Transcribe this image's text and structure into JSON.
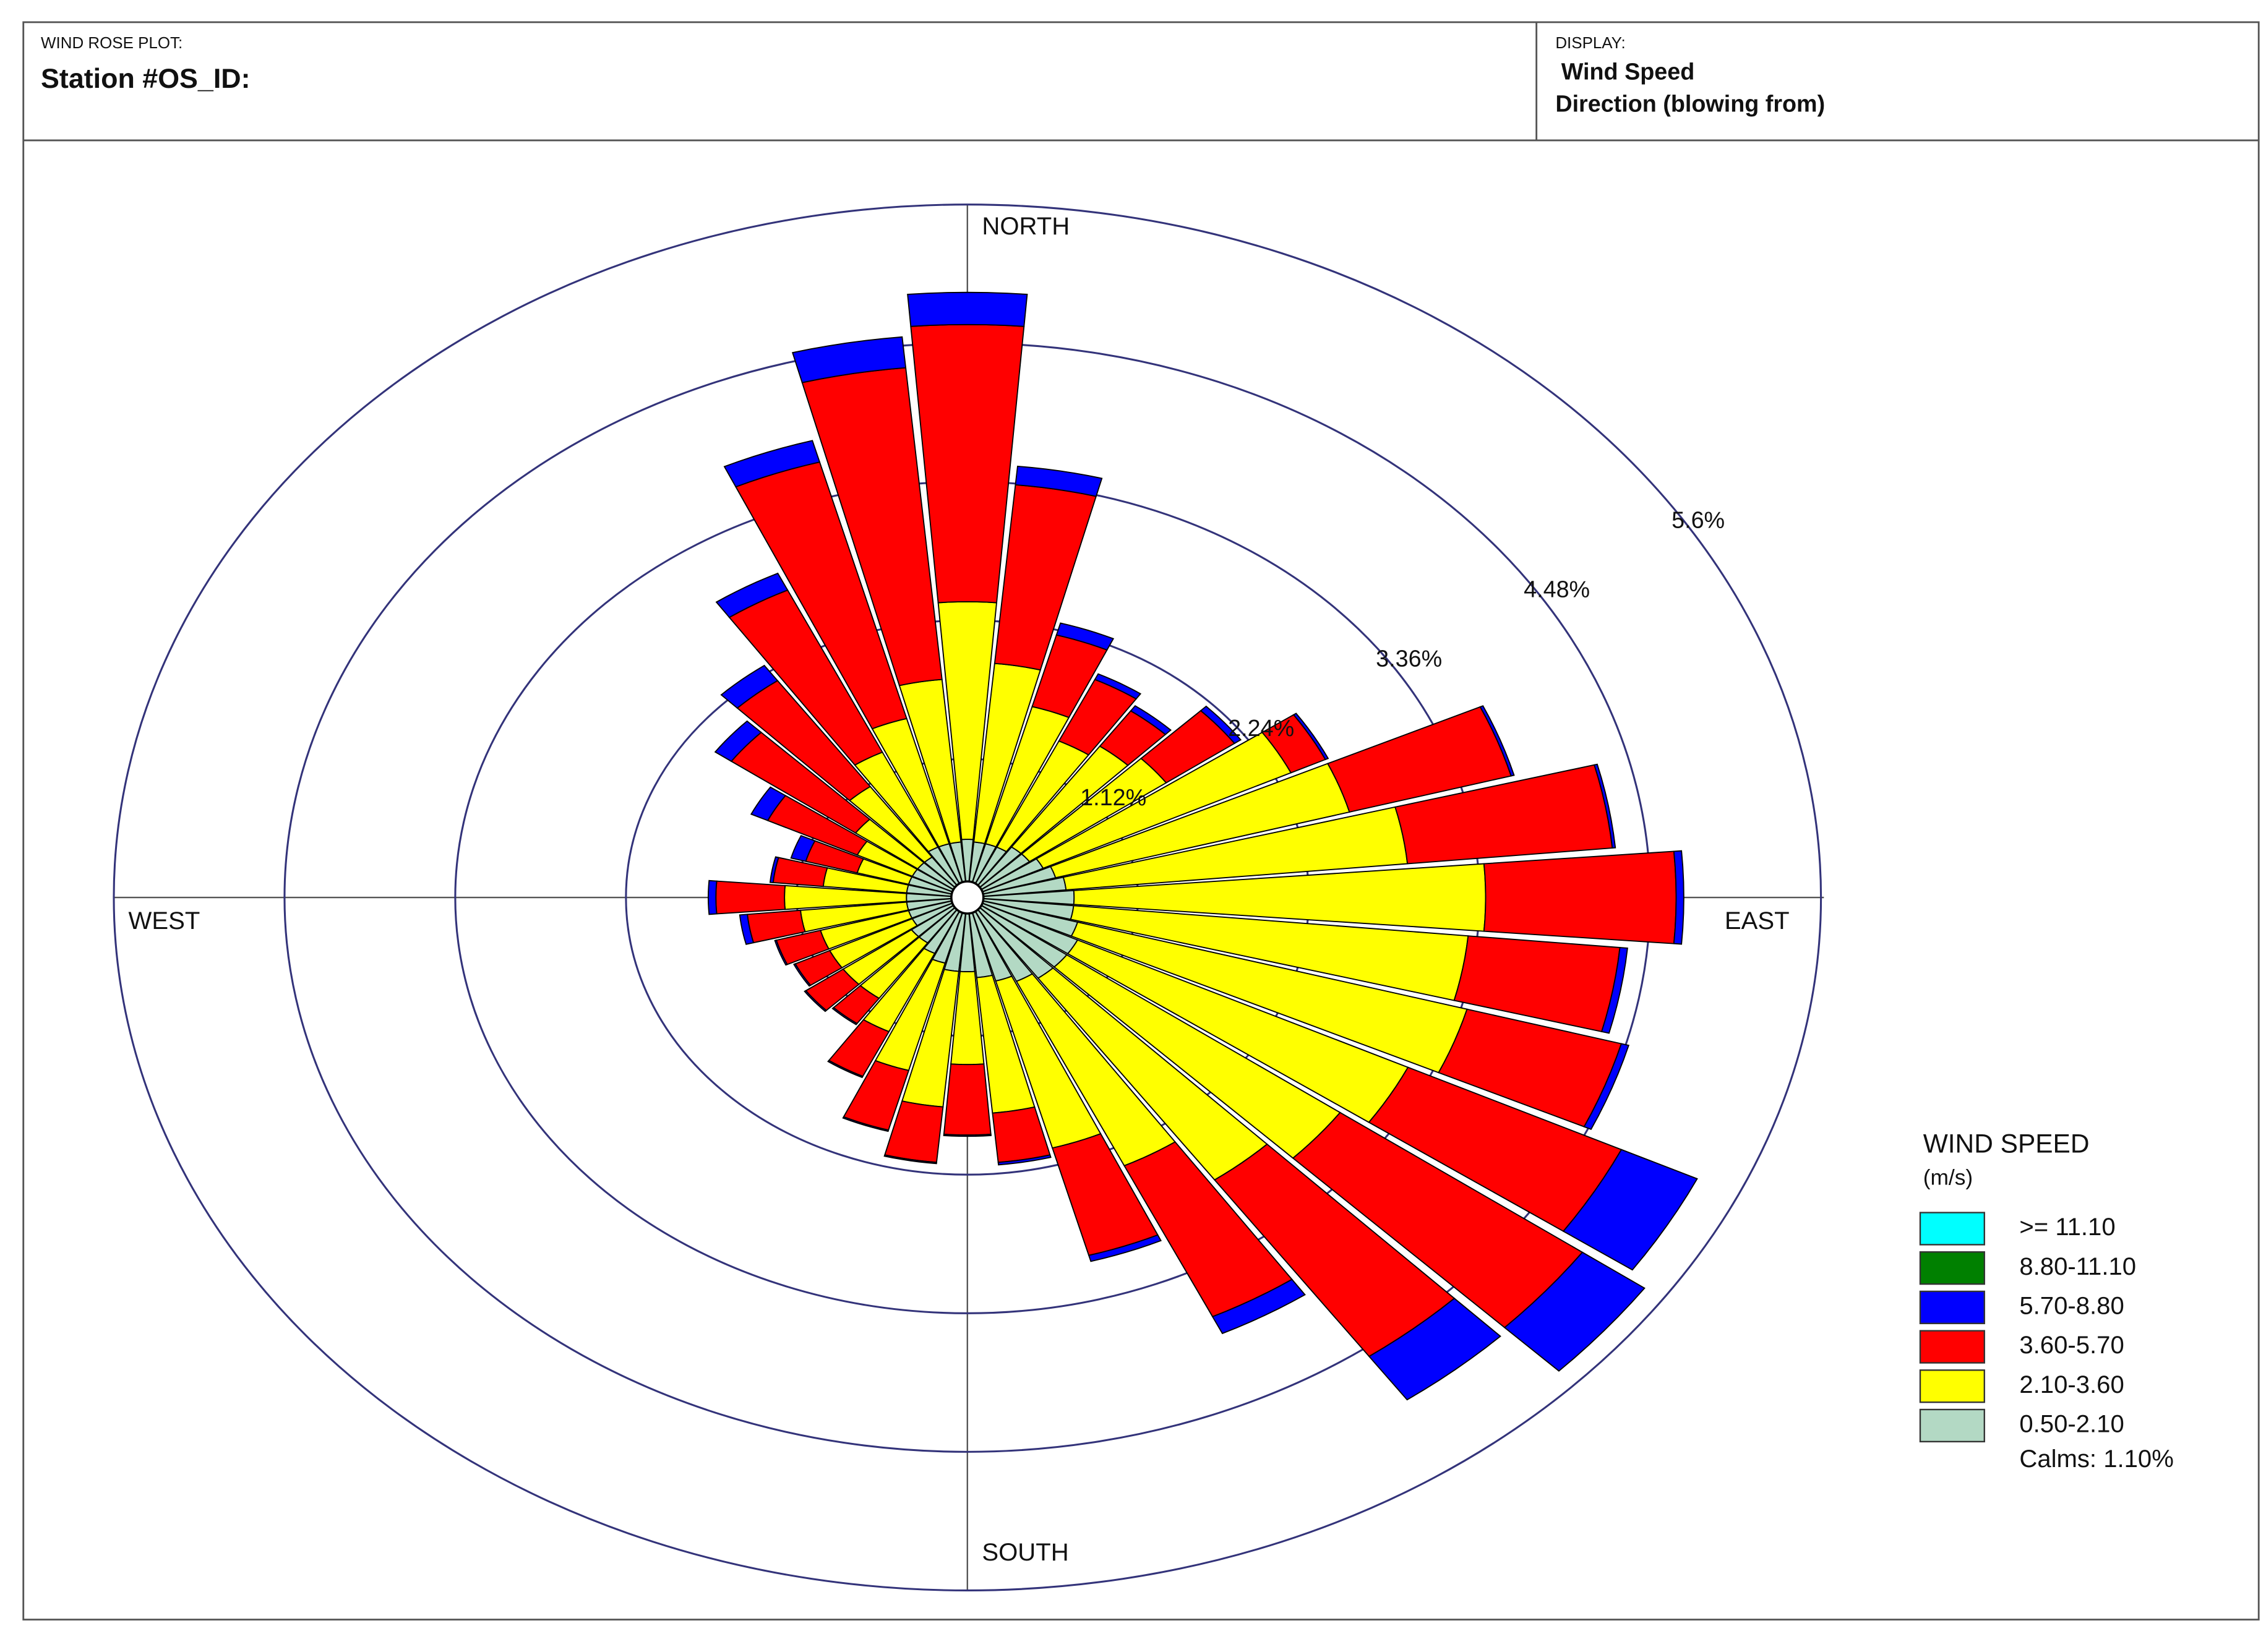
{
  "header": {
    "plot_label": "WIND ROSE PLOT:",
    "station": "Station #OS_ID:",
    "display_label": "DISPLAY:",
    "display_lines": [
      "Wind Speed",
      "Direction (blowing from)"
    ]
  },
  "chart_data": {
    "type": "windrose",
    "compass": [
      "NORTH",
      "EAST",
      "SOUTH",
      "WEST"
    ],
    "x": [
      0,
      10,
      20,
      30,
      40,
      50,
      60,
      70,
      80,
      90,
      100,
      110,
      120,
      130,
      140,
      150,
      160,
      170,
      180,
      190,
      200,
      210,
      220,
      230,
      240,
      250,
      260,
      270,
      280,
      290,
      300,
      310,
      320,
      330,
      340,
      350
    ],
    "rlim": [
      0,
      5.6
    ],
    "rticks": [
      {
        "value": 1.12,
        "label": "1.12%"
      },
      {
        "value": 2.24,
        "label": "2.24%"
      },
      {
        "value": 3.36,
        "label": "3.36%"
      },
      {
        "value": 4.48,
        "label": "4.48%"
      },
      {
        "value": 5.6,
        "label": "5.6%"
      }
    ],
    "legend_title": "WIND SPEED",
    "legend_unit": "(m/s)",
    "calms": {
      "value": 1.1,
      "label": "Calms: 1.10%"
    },
    "series": [
      {
        "name": ">= 11.10",
        "color": "#00ffff",
        "values": [
          0,
          0,
          0,
          0,
          0,
          0,
          0,
          0,
          0,
          0,
          0,
          0,
          0,
          0,
          0,
          0,
          0,
          0,
          0,
          0,
          0,
          0,
          0,
          0,
          0,
          0,
          0,
          0,
          0,
          0,
          0,
          0,
          0,
          0,
          0,
          0
        ]
      },
      {
        "name": "8.80-11.10",
        "color": "#008000",
        "values": [
          0,
          0,
          0,
          0,
          0,
          0,
          0,
          0,
          0,
          0,
          0,
          0,
          0,
          0,
          0,
          0,
          0,
          0,
          0,
          0,
          0,
          0,
          0,
          0,
          0,
          0,
          0,
          0,
          0,
          0,
          0,
          0,
          0,
          0,
          0,
          0
        ]
      },
      {
        "name": "5.70-8.80",
        "color": "#0000ff",
        "values": [
          0.26,
          0.15,
          0.1,
          0.05,
          0.05,
          0.05,
          0.02,
          0.02,
          0.02,
          0.05,
          0.05,
          0.05,
          0.55,
          0.5,
          0.43,
          0.15,
          0.05,
          0.02,
          0.01,
          0.01,
          0.01,
          0.01,
          0.01,
          0.01,
          0.01,
          0.01,
          0.05,
          0.05,
          0.02,
          0.1,
          0.12,
          0.13,
          0.15,
          0.15,
          0.18,
          0.25
        ]
      },
      {
        "name": "3.60-5.70",
        "color": "#ff0000",
        "values": [
          2.24,
          1.45,
          0.6,
          0.55,
          0.35,
          0.55,
          0.25,
          1.1,
          1.35,
          1.25,
          1.0,
          1.05,
          1.55,
          1.95,
          1.75,
          1.35,
          0.9,
          0.4,
          0.57,
          0.45,
          0.5,
          0.4,
          0.25,
          0.3,
          0.25,
          0.3,
          0.35,
          0.45,
          0.33,
          0.35,
          0.65,
          1.0,
          1.05,
          1.45,
          2.15,
          2.53
        ]
      },
      {
        "name": "2.10-3.60",
        "color": "#ffff00",
        "values": [
          1.92,
          1.45,
          1.15,
          0.95,
          1.0,
          1.1,
          1.8,
          2.0,
          2.25,
          2.7,
          2.6,
          2.65,
          2.4,
          2.2,
          2.0,
          1.65,
          1.4,
          1.1,
          0.75,
          1.1,
          0.9,
          0.7,
          0.55,
          0.55,
          0.6,
          0.6,
          0.7,
          0.8,
          0.55,
          0.35,
          0.4,
          0.5,
          0.7,
          0.85,
          1.05,
          1.32
        ]
      },
      {
        "name": "0.50-2.10",
        "color": "#b3d9c4",
        "values": [
          0.47,
          0.45,
          0.45,
          0.45,
          0.5,
          0.5,
          0.55,
          0.6,
          0.65,
          0.7,
          0.7,
          0.75,
          0.8,
          0.8,
          0.8,
          0.75,
          0.7,
          0.65,
          0.6,
          0.6,
          0.55,
          0.5,
          0.45,
          0.45,
          0.4,
          0.4,
          0.4,
          0.4,
          0.4,
          0.4,
          0.4,
          0.4,
          0.4,
          0.45,
          0.45,
          0.45
        ]
      }
    ]
  }
}
